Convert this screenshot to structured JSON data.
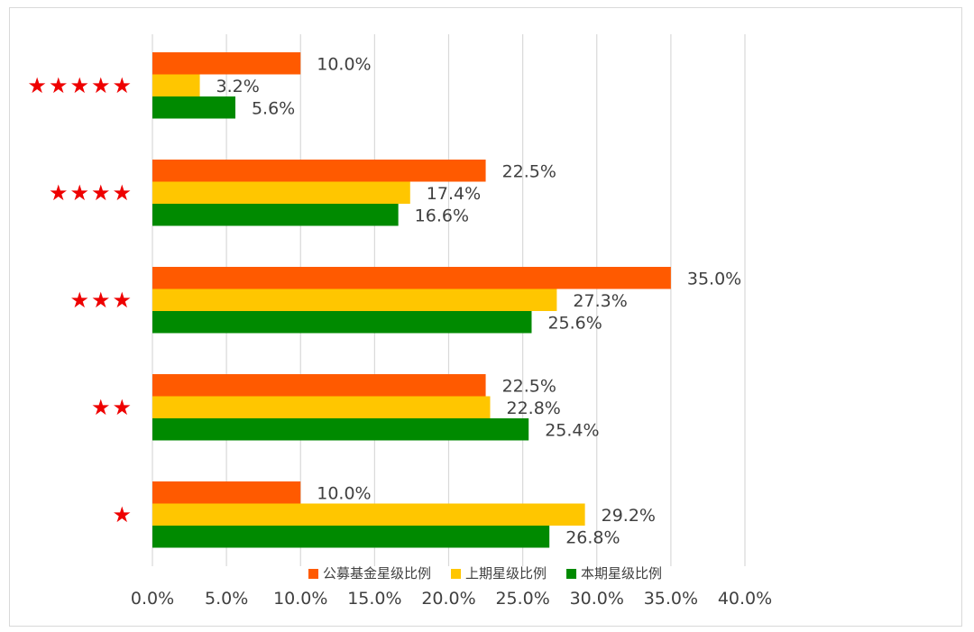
{
  "chart_data": {
    "type": "bar",
    "orientation": "horizontal",
    "categories": [
      "★★★★★",
      "★★★★",
      "★★★",
      "★★",
      "★"
    ],
    "series": [
      {
        "name": "公募基金星级比例",
        "color": "#ff5a00",
        "values": [
          10.0,
          22.5,
          35.0,
          22.5,
          10.0
        ]
      },
      {
        "name": "上期星级比例",
        "color": "#ffc600",
        "values": [
          3.2,
          17.4,
          27.3,
          22.8,
          29.2
        ]
      },
      {
        "name": "本期星级比例",
        "color": "#008a00",
        "values": [
          5.6,
          16.6,
          25.6,
          25.4,
          26.8
        ]
      }
    ],
    "xlim": [
      0,
      40
    ],
    "xticks": [
      0,
      5,
      10,
      15,
      20,
      25,
      30,
      35,
      40
    ],
    "xtick_labels": [
      "0.0%",
      "5.0%",
      "10.0%",
      "15.0%",
      "20.0%",
      "25.0%",
      "30.0%",
      "35.0%",
      "40.0%"
    ],
    "data_labels": [
      [
        "10.0%",
        "22.5%",
        "35.0%",
        "22.5%",
        "10.0%"
      ],
      [
        "3.2%",
        "17.4%",
        "27.3%",
        "22.8%",
        "29.2%"
      ],
      [
        "5.6%",
        "16.6%",
        "25.6%",
        "25.4%",
        "26.8%"
      ]
    ],
    "grid": "vertical",
    "legend_position": "bottom-inside",
    "category_label_color": "#ee0000",
    "gridline_color": "#d9d9d9",
    "text_color": "#404040"
  }
}
